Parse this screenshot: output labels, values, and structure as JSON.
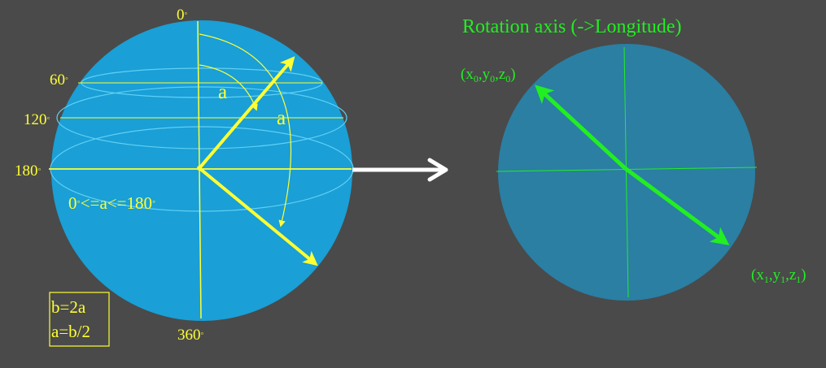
{
  "left_sphere": {
    "label_0": "0",
    "label_60": "60",
    "label_120": "120",
    "label_180": "180",
    "label_360": "360",
    "degree_symbol": "◦",
    "angle_label_inner": "a",
    "angle_label_outer": "a",
    "range_pre": "0",
    "range_mid": "<=a<=180",
    "range_post": "",
    "formula_line1": "b=2a",
    "formula_line2": "a=b/2"
  },
  "right_circle": {
    "title": "Rotation axis (->Longitude)",
    "point0": {
      "open": "(x",
      "s1": "0",
      "c1": ",y",
      "s2": "0",
      "c2": ",z",
      "s3": "0",
      "close": ")"
    },
    "point1": {
      "open": "(x",
      "s1": "1",
      "c1": ",y",
      "s2": "1",
      "c2": ",z",
      "s3": "1",
      "close": ")"
    }
  },
  "colors": {
    "background": "#4a4a4a",
    "sphere": "#1a9fd6",
    "disk": "#2a7fa3",
    "yellow": "#ffff33",
    "green": "#22ee22",
    "white": "#ffffff"
  }
}
